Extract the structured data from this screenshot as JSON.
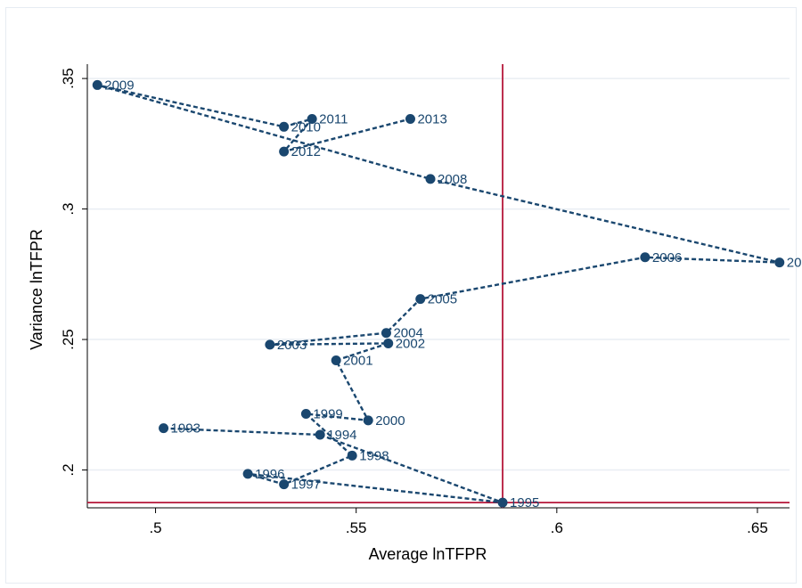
{
  "chart_data": {
    "type": "scatter",
    "title": "",
    "xlabel": "Average lnTFPR",
    "ylabel": "Variance lnTFPR",
    "xlim": [
      0.483,
      0.658
    ],
    "ylim": [
      0.1855,
      0.3555
    ],
    "xticks": [
      0.5,
      0.55,
      0.6,
      0.65
    ],
    "xtick_labels": [
      ".5",
      ".55",
      ".6",
      ".65"
    ],
    "yticks": [
      0.2,
      0.25,
      0.3,
      0.35
    ],
    "ytick_labels": [
      ".2",
      ".25",
      ".3",
      ".35"
    ],
    "grid": true,
    "connected": true,
    "line_style": "dashed",
    "series_color": "#1a476f",
    "reference_color": "#b5173a",
    "reference_lines": {
      "x": 0.5865,
      "y": 0.1875
    },
    "points": [
      {
        "year": "1993",
        "x": 0.502,
        "y": 0.216
      },
      {
        "year": "1994",
        "x": 0.541,
        "y": 0.2135
      },
      {
        "year": "1995",
        "x": 0.5865,
        "y": 0.1875
      },
      {
        "year": "1996",
        "x": 0.523,
        "y": 0.1985
      },
      {
        "year": "1997",
        "x": 0.532,
        "y": 0.1945
      },
      {
        "year": "1998",
        "x": 0.549,
        "y": 0.2055
      },
      {
        "year": "1999",
        "x": 0.5375,
        "y": 0.2215
      },
      {
        "year": "2000",
        "x": 0.553,
        "y": 0.219
      },
      {
        "year": "2001",
        "x": 0.545,
        "y": 0.242
      },
      {
        "year": "2002",
        "x": 0.558,
        "y": 0.2485
      },
      {
        "year": "2003",
        "x": 0.5285,
        "y": 0.248
      },
      {
        "year": "2004",
        "x": 0.5575,
        "y": 0.2525
      },
      {
        "year": "2005",
        "x": 0.566,
        "y": 0.2655
      },
      {
        "year": "2006",
        "x": 0.622,
        "y": 0.2815
      },
      {
        "year": "20",
        "x": 0.6555,
        "y": 0.2795
      },
      {
        "year": "2008",
        "x": 0.5685,
        "y": 0.3115
      },
      {
        "year": "2009",
        "x": 0.4855,
        "y": 0.3475
      },
      {
        "year": "2010",
        "x": 0.532,
        "y": 0.3315
      },
      {
        "year": "2011",
        "x": 0.539,
        "y": 0.3345
      },
      {
        "year": "2012",
        "x": 0.532,
        "y": 0.322
      },
      {
        "year": "2013",
        "x": 0.5635,
        "y": 0.3345
      }
    ]
  }
}
